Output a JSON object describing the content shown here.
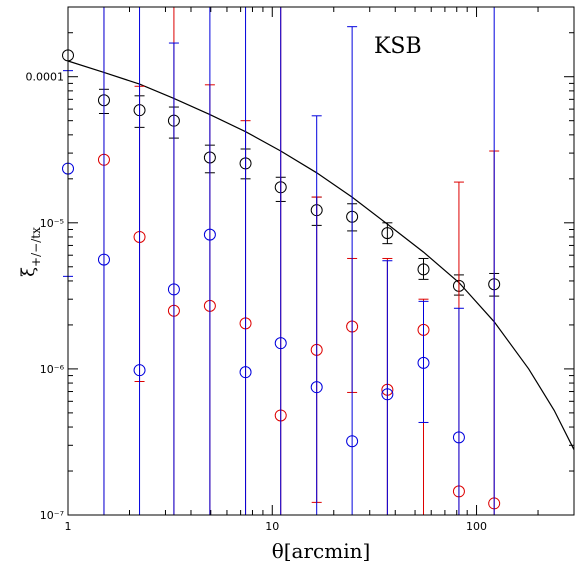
{
  "chart_data": {
    "type": "scatter",
    "title": "",
    "annotation": "KSB",
    "xlabel": "θ[arcmin]",
    "ylabel": "ξ+/−/tx",
    "xscale": "log",
    "yscale": "log",
    "xlim": [
      1,
      300
    ],
    "ylim": [
      1e-07,
      0.0003
    ],
    "x_ticks": [
      {
        "value": 1,
        "label": "1"
      },
      {
        "value": 10,
        "label": "10"
      },
      {
        "value": 100,
        "label": "100"
      }
    ],
    "y_ticks": [
      {
        "value": 1e-07,
        "label": "10⁻⁷"
      },
      {
        "value": 1e-06,
        "label": "10⁻⁶"
      },
      {
        "value": 1e-05,
        "label": "10⁻⁵"
      },
      {
        "value": 0.0001,
        "label": "0.0001"
      }
    ],
    "grid": false,
    "x": [
      1.0,
      1.5,
      2.24,
      3.3,
      4.95,
      7.4,
      11.0,
      16.5,
      24.6,
      36.6,
      55.0,
      82.0,
      122.0
    ],
    "series": [
      {
        "color": "#000000",
        "marker": "circle",
        "values": [
          0.00014,
          6.9e-05,
          5.9e-05,
          5e-05,
          2.8e-05,
          2.55e-05,
          1.75e-05,
          1.22e-05,
          1.1e-05,
          8.5e-06,
          4.8e-06,
          3.7e-06,
          3.8e-06
        ],
        "err_low": [
          null,
          5.6e-05,
          4.5e-05,
          3.8e-05,
          2.2e-05,
          2e-05,
          1.4e-05,
          9.6e-06,
          8.8e-06,
          7.2e-06,
          4.1e-06,
          3.2e-06,
          3.15e-06
        ],
        "err_high": [
          null,
          8.2e-05,
          7.4e-05,
          6.2e-05,
          3.4e-05,
          3.2e-05,
          2.05e-05,
          1.5e-05,
          1.35e-05,
          1e-05,
          5.7e-06,
          4.4e-06,
          4.5e-06
        ]
      },
      {
        "color": "#dd0000",
        "marker": "circle",
        "values": [
          null,
          2.7e-05,
          8e-06,
          2.5e-06,
          2.7e-06,
          2.05e-06,
          4.8e-07,
          1.35e-06,
          1.95e-06,
          7.2e-07,
          1.85e-06,
          1.45e-07,
          1.2e-07
        ],
        "err_low": [
          null,
          1e-07,
          8.2e-07,
          1e-07,
          1e-07,
          1e-07,
          1e-07,
          1.22e-07,
          6.9e-07,
          1e-07,
          1e-07,
          1e-07,
          1e-07
        ],
        "err_high": [
          null,
          0.0003,
          8.6e-05,
          0.0003,
          8.8e-05,
          5e-05,
          0.0003,
          1.5e-05,
          5.7e-06,
          5.7e-06,
          3e-06,
          1.9e-05,
          3.1e-05
        ]
      },
      {
        "color": "#0000dd",
        "marker": "circle",
        "values": [
          2.35e-05,
          5.6e-06,
          9.8e-07,
          3.5e-06,
          8.3e-06,
          9.5e-07,
          1.5e-06,
          7.5e-07,
          3.2e-07,
          6.7e-07,
          1.1e-06,
          3.4e-07,
          null
        ],
        "err_low": [
          4.3e-06,
          1e-07,
          1e-07,
          1e-07,
          1e-07,
          1e-07,
          1e-07,
          1e-07,
          1e-07,
          1e-07,
          4.3e-07,
          1e-07,
          1e-07
        ],
        "err_high": [
          0.00011,
          0.0003,
          0.0003,
          0.00017,
          0.0003,
          0.0003,
          0.0003,
          5.4e-05,
          0.00022,
          5.5e-06,
          2.9e-06,
          2.6e-06,
          0.0003
        ]
      }
    ],
    "model_curve": {
      "color": "#000000",
      "x": [
        1,
        1.5,
        2.24,
        3.3,
        4.95,
        7.4,
        11,
        16.5,
        24.6,
        36.6,
        55,
        82,
        122,
        180,
        240,
        300
      ],
      "y": [
        0.000128,
        0.000107,
        8.9e-05,
        7.1e-05,
        5.5e-05,
        4.2e-05,
        3.1e-05,
        2.2e-05,
        1.5e-05,
        9.8e-06,
        6.3e-06,
        3.9e-06,
        2.1e-06,
        1e-06,
        5.2e-07,
        2.8e-07
      ]
    }
  }
}
